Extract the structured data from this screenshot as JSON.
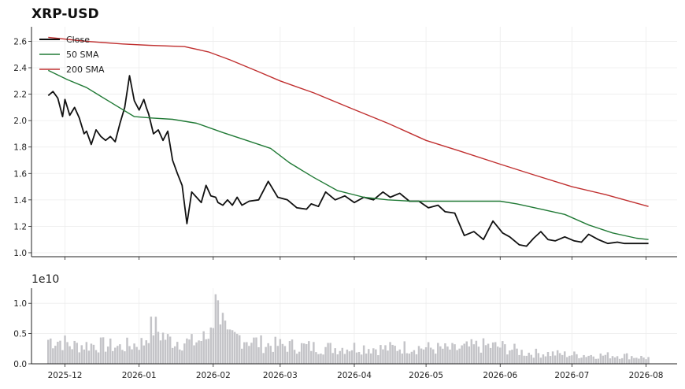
{
  "chart_data": [
    {
      "type": "line",
      "title": "XRP-USD",
      "xlabel": "",
      "ylabel": "",
      "ylim": [
        0.97,
        2.71
      ],
      "xlim": [
        "2025-11-17",
        "2026-08-14"
      ],
      "grid": true,
      "legend_position": "top-left",
      "y_ticks": [
        "1.0",
        "1.2",
        "1.4",
        "1.6",
        "1.8",
        "2.0",
        "2.2",
        "2.4",
        "2.6"
      ],
      "series": [
        {
          "name": "Close",
          "color": "#111111",
          "x": [
            "2025-11-24",
            "2025-11-26",
            "2025-11-28",
            "2025-11-30",
            "2025-12-01",
            "2025-12-03",
            "2025-12-05",
            "2025-12-07",
            "2025-12-09",
            "2025-12-10",
            "2025-12-12",
            "2025-12-14",
            "2025-12-16",
            "2025-12-18",
            "2025-12-20",
            "2025-12-22",
            "2025-12-24",
            "2025-12-26",
            "2025-12-28",
            "2025-12-30",
            "2026-01-01",
            "2026-01-03",
            "2026-01-04",
            "2026-01-05",
            "2026-01-07",
            "2026-01-09",
            "2026-01-11",
            "2026-01-13",
            "2026-01-15",
            "2026-01-17",
            "2026-01-19",
            "2026-01-21",
            "2026-01-23",
            "2026-01-25",
            "2026-01-27",
            "2026-01-29",
            "2026-01-31",
            "2026-02-02",
            "2026-02-03",
            "2026-02-05",
            "2026-02-07",
            "2026-02-09",
            "2026-02-11",
            "2026-02-13",
            "2026-02-16",
            "2026-02-20",
            "2026-02-24",
            "2026-02-28",
            "2026-03-04",
            "2026-03-08",
            "2026-03-12",
            "2026-03-14",
            "2026-03-17",
            "2026-03-20",
            "2026-03-24",
            "2026-03-28",
            "2026-04-01",
            "2026-04-05",
            "2026-04-09",
            "2026-04-13",
            "2026-04-16",
            "2026-04-20",
            "2026-04-24",
            "2026-04-28",
            "2026-05-02",
            "2026-05-06",
            "2026-05-09",
            "2026-05-13",
            "2026-05-17",
            "2026-05-21",
            "2026-05-25",
            "2026-05-29",
            "2026-06-02",
            "2026-06-05",
            "2026-06-09",
            "2026-06-12",
            "2026-06-15",
            "2026-06-18",
            "2026-06-21",
            "2026-06-24",
            "2026-06-28",
            "2026-07-02",
            "2026-07-05",
            "2026-07-08",
            "2026-07-12",
            "2026-07-16",
            "2026-07-20",
            "2026-07-23",
            "2026-07-26",
            "2026-07-30",
            "2026-08-02"
          ],
          "values": [
            2.19,
            2.22,
            2.17,
            2.03,
            2.16,
            2.04,
            2.1,
            2.02,
            1.9,
            1.92,
            1.82,
            1.93,
            1.88,
            1.85,
            1.88,
            1.84,
            1.98,
            2.1,
            2.34,
            2.15,
            2.08,
            2.16,
            2.1,
            2.05,
            1.9,
            1.93,
            1.85,
            1.92,
            1.7,
            1.6,
            1.51,
            1.22,
            1.46,
            1.42,
            1.38,
            1.51,
            1.43,
            1.42,
            1.38,
            1.36,
            1.4,
            1.36,
            1.42,
            1.36,
            1.39,
            1.4,
            1.54,
            1.42,
            1.4,
            1.34,
            1.33,
            1.37,
            1.35,
            1.46,
            1.4,
            1.43,
            1.38,
            1.42,
            1.4,
            1.46,
            1.42,
            1.45,
            1.39,
            1.39,
            1.34,
            1.36,
            1.31,
            1.3,
            1.13,
            1.16,
            1.1,
            1.24,
            1.15,
            1.12,
            1.06,
            1.05,
            1.11,
            1.16,
            1.1,
            1.09,
            1.12,
            1.09,
            1.08,
            1.14,
            1.1,
            1.07,
            1.08,
            1.07,
            1.07,
            1.07,
            1.07
          ]
        },
        {
          "name": "50 SMA",
          "color": "#217a36",
          "x": [
            "2025-11-24",
            "2025-12-02",
            "2025-12-10",
            "2025-12-20",
            "2025-12-30",
            "2026-01-06",
            "2026-01-15",
            "2026-01-25",
            "2026-02-05",
            "2026-02-15",
            "2026-02-25",
            "2026-03-05",
            "2026-03-15",
            "2026-03-25",
            "2026-04-05",
            "2026-04-15",
            "2026-04-25",
            "2026-05-05",
            "2026-05-15",
            "2026-05-25",
            "2026-06-01",
            "2026-06-08",
            "2026-06-18",
            "2026-06-28",
            "2026-07-08",
            "2026-07-18",
            "2026-07-28",
            "2026-08-02"
          ],
          "values": [
            2.38,
            2.31,
            2.25,
            2.14,
            2.03,
            2.02,
            2.01,
            1.98,
            1.91,
            1.85,
            1.79,
            1.68,
            1.57,
            1.47,
            1.42,
            1.4,
            1.39,
            1.39,
            1.39,
            1.39,
            1.39,
            1.37,
            1.33,
            1.29,
            1.21,
            1.15,
            1.11,
            1.1
          ]
        },
        {
          "name": "200 SMA",
          "color": "#c03030",
          "x": [
            "2025-11-24",
            "2025-12-10",
            "2025-12-25",
            "2026-01-05",
            "2026-01-20",
            "2026-01-30",
            "2026-02-08",
            "2026-02-20",
            "2026-03-01",
            "2026-03-15",
            "2026-03-31",
            "2026-04-15",
            "2026-05-01",
            "2026-05-15",
            "2026-06-01",
            "2026-06-15",
            "2026-07-01",
            "2026-07-15",
            "2026-08-02"
          ],
          "values": [
            2.63,
            2.6,
            2.58,
            2.57,
            2.56,
            2.52,
            2.46,
            2.37,
            2.3,
            2.21,
            2.09,
            1.98,
            1.85,
            1.77,
            1.67,
            1.59,
            1.5,
            1.44,
            1.35
          ]
        }
      ]
    },
    {
      "type": "bar",
      "title": "",
      "xlabel": "",
      "ylabel": "",
      "y_offset_label": "1e10",
      "ylim": [
        0,
        1.25
      ],
      "grid": true,
      "y_ticks": [
        "0.0",
        "0.5",
        "1.0"
      ],
      "x_ticks": [
        "2025-12",
        "2026-01",
        "2026-02",
        "2026-03",
        "2026-04",
        "2026-05",
        "2026-06",
        "2026-07",
        "2026-08"
      ],
      "bar_color": "#c4c4c8",
      "start_date": "2025-11-24",
      "end_date": "2026-08-02",
      "volume_anchor_days": [
        0,
        5,
        10,
        20,
        30,
        40,
        43,
        50,
        60,
        68,
        70,
        75,
        80,
        90,
        100,
        110,
        120,
        130,
        140,
        150,
        160,
        170,
        180,
        190,
        200,
        210,
        220,
        230,
        240,
        250
      ],
      "volume_anchor_values": [
        0.4,
        0.38,
        0.3,
        0.32,
        0.28,
        0.35,
        0.65,
        0.4,
        0.35,
        0.45,
        1.1,
        0.4,
        0.45,
        0.32,
        0.3,
        0.28,
        0.26,
        0.28,
        0.25,
        0.28,
        0.26,
        0.24,
        0.3,
        0.28,
        0.18,
        0.17,
        0.15,
        0.14,
        0.14,
        0.1
      ]
    }
  ]
}
